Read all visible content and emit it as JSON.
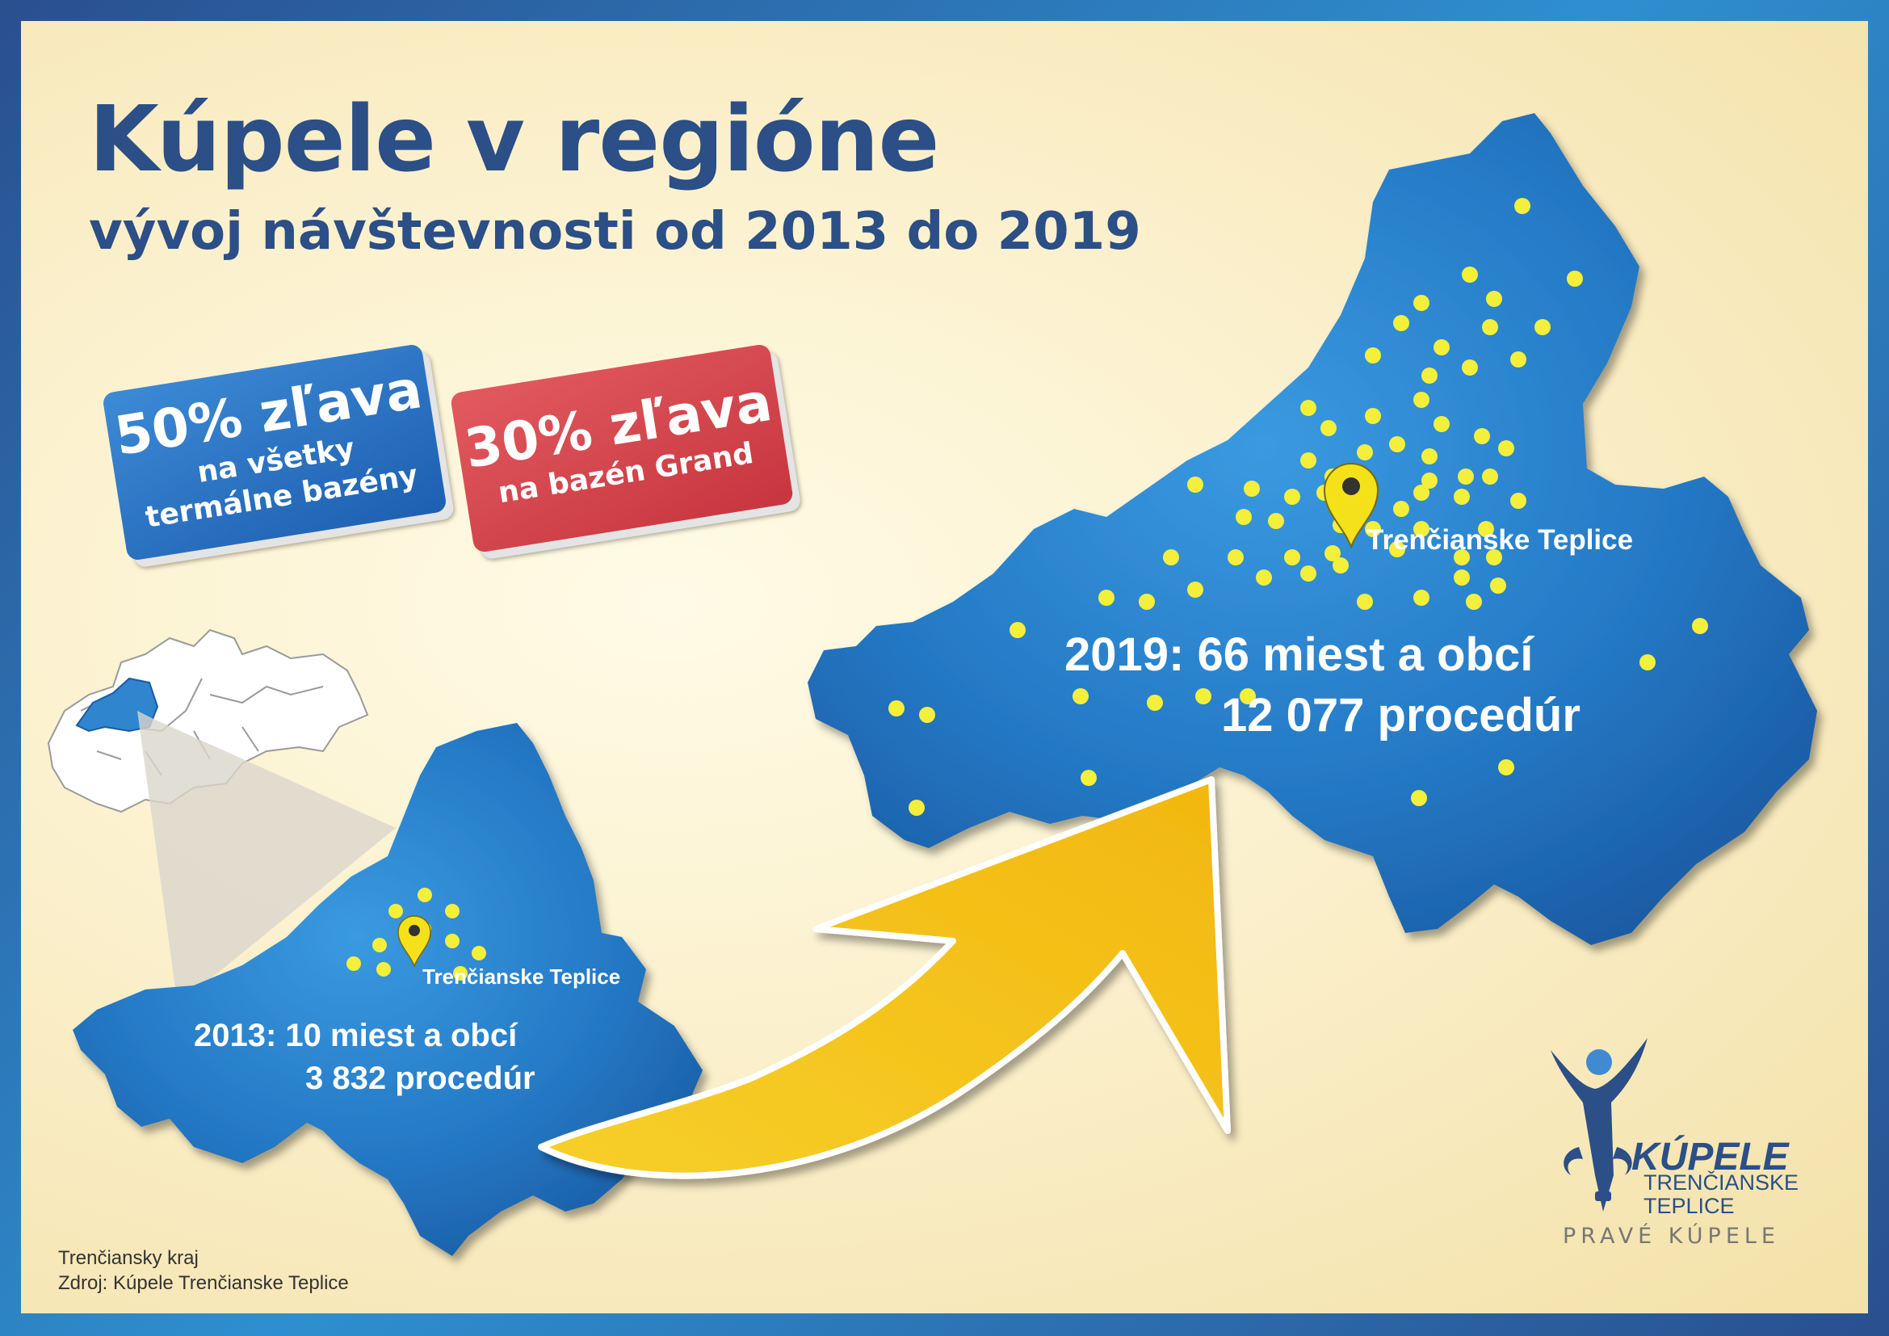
{
  "title": "Kúpele v regióne",
  "subtitle": "vývoj návštevnosti od 2013 do 2019",
  "offers": [
    {
      "headline": "50% zľava",
      "line1": "na všetky",
      "line2": "termálne bazény",
      "color": "#2b6fc2"
    },
    {
      "headline": "30% zľava",
      "line1": "na bazén Grand",
      "line2": "",
      "color": "#d6434b"
    }
  ],
  "map_2013": {
    "place_label": "Trenčianske Teplice",
    "stat_line1": "2013: 10 miest a obcí",
    "stat_line2": "3 832 procedúr",
    "towns_count": 10,
    "procedures": 3832
  },
  "map_2019": {
    "place_label": "Trenčianske Teplice",
    "stat_line1": "2019: 66 miest a obcí",
    "stat_line2": "12 077 procedúr",
    "towns_count": 66,
    "procedures": 12077
  },
  "source": {
    "line1": "Trenčiansky kraj",
    "line2": "Zdroj: Kúpele Trenčianske Teplice"
  },
  "logo": {
    "line1": "KÚPELE",
    "line2": "TRENČIANSKE",
    "line3": "TEPLICE",
    "slogan": "PRAVÉ KÚPELE"
  },
  "colors": {
    "map_blue": "#2f86cf",
    "dot_yellow": "#f3ef3a",
    "arrow_yellow": "#f5c518",
    "title_navy": "#2b4f86"
  },
  "icons": [
    "map-pin-icon",
    "growth-arrow-icon",
    "fountain-figure-icon"
  ]
}
